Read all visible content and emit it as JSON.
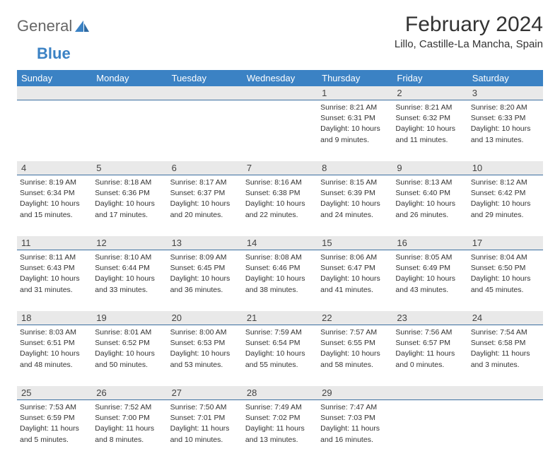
{
  "logo": {
    "text1": "General",
    "text2": "Blue"
  },
  "header": {
    "month_title": "February 2024",
    "location": "Lillo, Castille-La Mancha, Spain"
  },
  "colors": {
    "header_bar": "#3b82c4",
    "header_text": "#ffffff",
    "daynum_bg": "#e9e9e9",
    "daynum_border": "#3b6fa0",
    "body_text": "#333333",
    "background": "#ffffff"
  },
  "fonts": {
    "month_title_pt": 30,
    "location_pt": 15,
    "dayname_pt": 13,
    "daynum_pt": 13,
    "info_pt": 10.5
  },
  "daynames": [
    "Sunday",
    "Monday",
    "Tuesday",
    "Wednesday",
    "Thursday",
    "Friday",
    "Saturday"
  ],
  "weeks": [
    [
      {
        "day": "",
        "sunrise": "",
        "sunset": "",
        "daylight1": "",
        "daylight2": ""
      },
      {
        "day": "",
        "sunrise": "",
        "sunset": "",
        "daylight1": "",
        "daylight2": ""
      },
      {
        "day": "",
        "sunrise": "",
        "sunset": "",
        "daylight1": "",
        "daylight2": ""
      },
      {
        "day": "",
        "sunrise": "",
        "sunset": "",
        "daylight1": "",
        "daylight2": ""
      },
      {
        "day": "1",
        "sunrise": "Sunrise: 8:21 AM",
        "sunset": "Sunset: 6:31 PM",
        "daylight1": "Daylight: 10 hours",
        "daylight2": "and 9 minutes."
      },
      {
        "day": "2",
        "sunrise": "Sunrise: 8:21 AM",
        "sunset": "Sunset: 6:32 PM",
        "daylight1": "Daylight: 10 hours",
        "daylight2": "and 11 minutes."
      },
      {
        "day": "3",
        "sunrise": "Sunrise: 8:20 AM",
        "sunset": "Sunset: 6:33 PM",
        "daylight1": "Daylight: 10 hours",
        "daylight2": "and 13 minutes."
      }
    ],
    [
      {
        "day": "4",
        "sunrise": "Sunrise: 8:19 AM",
        "sunset": "Sunset: 6:34 PM",
        "daylight1": "Daylight: 10 hours",
        "daylight2": "and 15 minutes."
      },
      {
        "day": "5",
        "sunrise": "Sunrise: 8:18 AM",
        "sunset": "Sunset: 6:36 PM",
        "daylight1": "Daylight: 10 hours",
        "daylight2": "and 17 minutes."
      },
      {
        "day": "6",
        "sunrise": "Sunrise: 8:17 AM",
        "sunset": "Sunset: 6:37 PM",
        "daylight1": "Daylight: 10 hours",
        "daylight2": "and 20 minutes."
      },
      {
        "day": "7",
        "sunrise": "Sunrise: 8:16 AM",
        "sunset": "Sunset: 6:38 PM",
        "daylight1": "Daylight: 10 hours",
        "daylight2": "and 22 minutes."
      },
      {
        "day": "8",
        "sunrise": "Sunrise: 8:15 AM",
        "sunset": "Sunset: 6:39 PM",
        "daylight1": "Daylight: 10 hours",
        "daylight2": "and 24 minutes."
      },
      {
        "day": "9",
        "sunrise": "Sunrise: 8:13 AM",
        "sunset": "Sunset: 6:40 PM",
        "daylight1": "Daylight: 10 hours",
        "daylight2": "and 26 minutes."
      },
      {
        "day": "10",
        "sunrise": "Sunrise: 8:12 AM",
        "sunset": "Sunset: 6:42 PM",
        "daylight1": "Daylight: 10 hours",
        "daylight2": "and 29 minutes."
      }
    ],
    [
      {
        "day": "11",
        "sunrise": "Sunrise: 8:11 AM",
        "sunset": "Sunset: 6:43 PM",
        "daylight1": "Daylight: 10 hours",
        "daylight2": "and 31 minutes."
      },
      {
        "day": "12",
        "sunrise": "Sunrise: 8:10 AM",
        "sunset": "Sunset: 6:44 PM",
        "daylight1": "Daylight: 10 hours",
        "daylight2": "and 33 minutes."
      },
      {
        "day": "13",
        "sunrise": "Sunrise: 8:09 AM",
        "sunset": "Sunset: 6:45 PM",
        "daylight1": "Daylight: 10 hours",
        "daylight2": "and 36 minutes."
      },
      {
        "day": "14",
        "sunrise": "Sunrise: 8:08 AM",
        "sunset": "Sunset: 6:46 PM",
        "daylight1": "Daylight: 10 hours",
        "daylight2": "and 38 minutes."
      },
      {
        "day": "15",
        "sunrise": "Sunrise: 8:06 AM",
        "sunset": "Sunset: 6:47 PM",
        "daylight1": "Daylight: 10 hours",
        "daylight2": "and 41 minutes."
      },
      {
        "day": "16",
        "sunrise": "Sunrise: 8:05 AM",
        "sunset": "Sunset: 6:49 PM",
        "daylight1": "Daylight: 10 hours",
        "daylight2": "and 43 minutes."
      },
      {
        "day": "17",
        "sunrise": "Sunrise: 8:04 AM",
        "sunset": "Sunset: 6:50 PM",
        "daylight1": "Daylight: 10 hours",
        "daylight2": "and 45 minutes."
      }
    ],
    [
      {
        "day": "18",
        "sunrise": "Sunrise: 8:03 AM",
        "sunset": "Sunset: 6:51 PM",
        "daylight1": "Daylight: 10 hours",
        "daylight2": "and 48 minutes."
      },
      {
        "day": "19",
        "sunrise": "Sunrise: 8:01 AM",
        "sunset": "Sunset: 6:52 PM",
        "daylight1": "Daylight: 10 hours",
        "daylight2": "and 50 minutes."
      },
      {
        "day": "20",
        "sunrise": "Sunrise: 8:00 AM",
        "sunset": "Sunset: 6:53 PM",
        "daylight1": "Daylight: 10 hours",
        "daylight2": "and 53 minutes."
      },
      {
        "day": "21",
        "sunrise": "Sunrise: 7:59 AM",
        "sunset": "Sunset: 6:54 PM",
        "daylight1": "Daylight: 10 hours",
        "daylight2": "and 55 minutes."
      },
      {
        "day": "22",
        "sunrise": "Sunrise: 7:57 AM",
        "sunset": "Sunset: 6:55 PM",
        "daylight1": "Daylight: 10 hours",
        "daylight2": "and 58 minutes."
      },
      {
        "day": "23",
        "sunrise": "Sunrise: 7:56 AM",
        "sunset": "Sunset: 6:57 PM",
        "daylight1": "Daylight: 11 hours",
        "daylight2": "and 0 minutes."
      },
      {
        "day": "24",
        "sunrise": "Sunrise: 7:54 AM",
        "sunset": "Sunset: 6:58 PM",
        "daylight1": "Daylight: 11 hours",
        "daylight2": "and 3 minutes."
      }
    ],
    [
      {
        "day": "25",
        "sunrise": "Sunrise: 7:53 AM",
        "sunset": "Sunset: 6:59 PM",
        "daylight1": "Daylight: 11 hours",
        "daylight2": "and 5 minutes."
      },
      {
        "day": "26",
        "sunrise": "Sunrise: 7:52 AM",
        "sunset": "Sunset: 7:00 PM",
        "daylight1": "Daylight: 11 hours",
        "daylight2": "and 8 minutes."
      },
      {
        "day": "27",
        "sunrise": "Sunrise: 7:50 AM",
        "sunset": "Sunset: 7:01 PM",
        "daylight1": "Daylight: 11 hours",
        "daylight2": "and 10 minutes."
      },
      {
        "day": "28",
        "sunrise": "Sunrise: 7:49 AM",
        "sunset": "Sunset: 7:02 PM",
        "daylight1": "Daylight: 11 hours",
        "daylight2": "and 13 minutes."
      },
      {
        "day": "29",
        "sunrise": "Sunrise: 7:47 AM",
        "sunset": "Sunset: 7:03 PM",
        "daylight1": "Daylight: 11 hours",
        "daylight2": "and 16 minutes."
      },
      {
        "day": "",
        "sunrise": "",
        "sunset": "",
        "daylight1": "",
        "daylight2": ""
      },
      {
        "day": "",
        "sunrise": "",
        "sunset": "",
        "daylight1": "",
        "daylight2": ""
      }
    ]
  ]
}
